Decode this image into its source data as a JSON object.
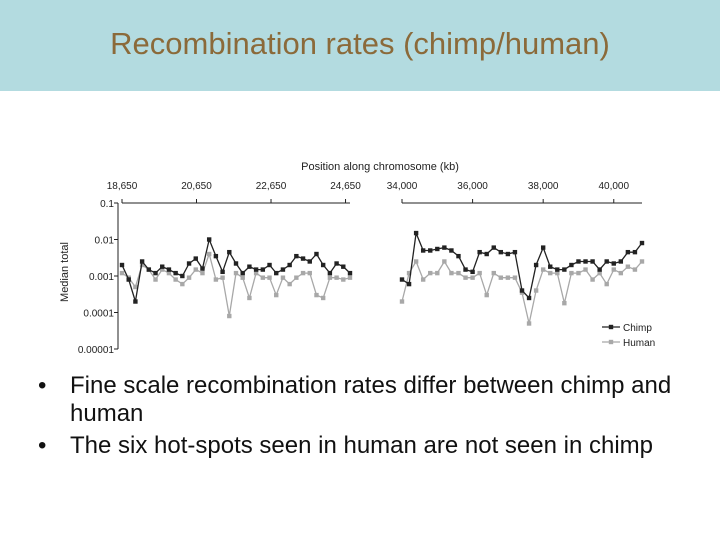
{
  "slide": {
    "title": "Recombination rates (chimp/human)",
    "bullet_glyph": "•",
    "bullets": [
      "Fine scale recombination rates differ between chimp and human",
      "The six hot-spots seen in human are not seen in chimp"
    ]
  },
  "chart_data": {
    "type": "line",
    "xlabel": "Position along chromosome (kb)",
    "ylabel": "Median total",
    "y_scale": "log",
    "ylim": [
      1e-05,
      0.1
    ],
    "y_ticks": [
      "0.1",
      "0.01",
      "0.001",
      "0.0001",
      "0.00001"
    ],
    "legend_position": "bottom-right",
    "colors": {
      "Chimp": "#222222",
      "Human": "#a8a8a8"
    },
    "panels": [
      {
        "x_ticks": [
          "18,650",
          "20,650",
          "22,650",
          "24,650"
        ],
        "x_tick_values": [
          18650,
          20650,
          22650,
          24650
        ],
        "x": [
          18650,
          18830,
          19010,
          19190,
          19370,
          19550,
          19730,
          19910,
          20090,
          20270,
          20450,
          20630,
          20810,
          20990,
          21170,
          21350,
          21530,
          21710,
          21890,
          22070,
          22250,
          22430,
          22610,
          22790,
          22970,
          23150,
          23330,
          23510,
          23690,
          23870,
          24050,
          24230,
          24410,
          24590,
          24770
        ],
        "series": [
          {
            "name": "Chimp",
            "values": [
              0.002,
              0.0008,
              0.0002,
              0.0025,
              0.0015,
              0.0012,
              0.0018,
              0.0015,
              0.0012,
              0.001,
              0.0022,
              0.003,
              0.0016,
              0.01,
              0.0035,
              0.0013,
              0.0045,
              0.0022,
              0.0012,
              0.0018,
              0.0015,
              0.0015,
              0.002,
              0.0012,
              0.0015,
              0.002,
              0.0035,
              0.003,
              0.0025,
              0.004,
              0.002,
              0.0012,
              0.0022,
              0.0018,
              0.0012
            ]
          },
          {
            "name": "Human",
            "values": [
              0.0012,
              0.0009,
              0.0005,
              0.002,
              0.0015,
              0.0008,
              0.0015,
              0.0012,
              0.0008,
              0.0006,
              0.0009,
              0.0015,
              0.0012,
              0.004,
              0.0008,
              0.0009,
              8e-05,
              0.0012,
              0.0009,
              0.00025,
              0.0012,
              0.0009,
              0.0009,
              0.0003,
              0.0009,
              0.0006,
              0.0009,
              0.0012,
              0.0012,
              0.0003,
              0.00025,
              0.0009,
              0.0009,
              0.0008,
              0.0009
            ]
          }
        ]
      },
      {
        "x_ticks": [
          "34,000",
          "36,000",
          "38,000",
          "40,000"
        ],
        "x_tick_values": [
          34000,
          36000,
          38000,
          40000
        ],
        "x": [
          34000,
          34200,
          34400,
          34600,
          34800,
          35000,
          35200,
          35400,
          35600,
          35800,
          36000,
          36200,
          36400,
          36600,
          36800,
          37000,
          37200,
          37400,
          37600,
          37800,
          38000,
          38200,
          38400,
          38600,
          38800,
          39000,
          39200,
          39400,
          39600,
          39800,
          40000,
          40200,
          40400,
          40600,
          40800
        ],
        "series": [
          {
            "name": "Chimp",
            "values": [
              0.0008,
              0.0006,
              0.015,
              0.005,
              0.005,
              0.0055,
              0.006,
              0.005,
              0.0035,
              0.0015,
              0.0013,
              0.0045,
              0.004,
              0.006,
              0.0045,
              0.004,
              0.0045,
              0.0004,
              0.00025,
              0.002,
              0.006,
              0.0018,
              0.0015,
              0.0015,
              0.002,
              0.0025,
              0.0025,
              0.0025,
              0.0015,
              0.0025,
              0.0022,
              0.0025,
              0.0045,
              0.0045,
              0.008
            ]
          },
          {
            "name": "Human",
            "values": [
              0.0002,
              0.0012,
              0.0025,
              0.0008,
              0.0012,
              0.0012,
              0.0025,
              0.0012,
              0.0012,
              0.0009,
              0.0009,
              0.0012,
              0.0003,
              0.0012,
              0.0009,
              0.0009,
              0.0009,
              0.00035,
              5e-05,
              0.0004,
              0.0015,
              0.0012,
              0.0012,
              0.00018,
              0.0012,
              0.0012,
              0.0015,
              0.0008,
              0.0012,
              0.0006,
              0.0015,
              0.0012,
              0.0018,
              0.0015,
              0.0025
            ]
          }
        ]
      }
    ]
  }
}
